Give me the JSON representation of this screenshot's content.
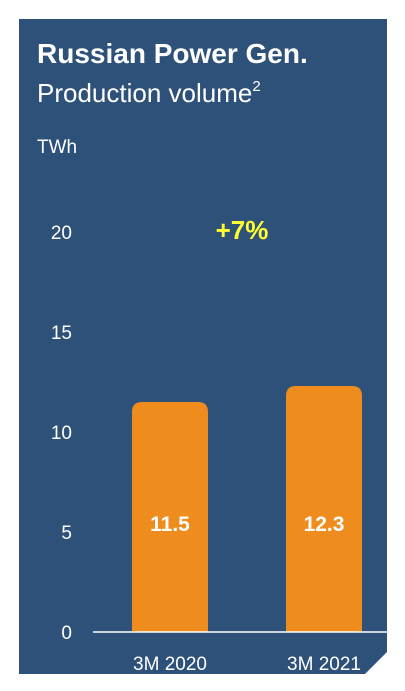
{
  "chart_data": {
    "type": "bar",
    "title": "Russian Power Gen.",
    "subtitle": "Production volume",
    "subtitle_footnote": "2",
    "unit": "TWh",
    "categories": [
      "3M 2020",
      "3M 2021"
    ],
    "values": [
      11.5,
      12.3
    ],
    "value_labels": [
      "11.5",
      "12.3"
    ],
    "yticks": [
      "0",
      "5",
      "10",
      "15",
      "20"
    ],
    "ylim": [
      0,
      20
    ],
    "annotation": "+7%",
    "grid": false,
    "colors": {
      "background": "#2d5179",
      "bar": "#ef8c1e",
      "annotation": "#ffff33",
      "text": "#ffffff"
    }
  }
}
